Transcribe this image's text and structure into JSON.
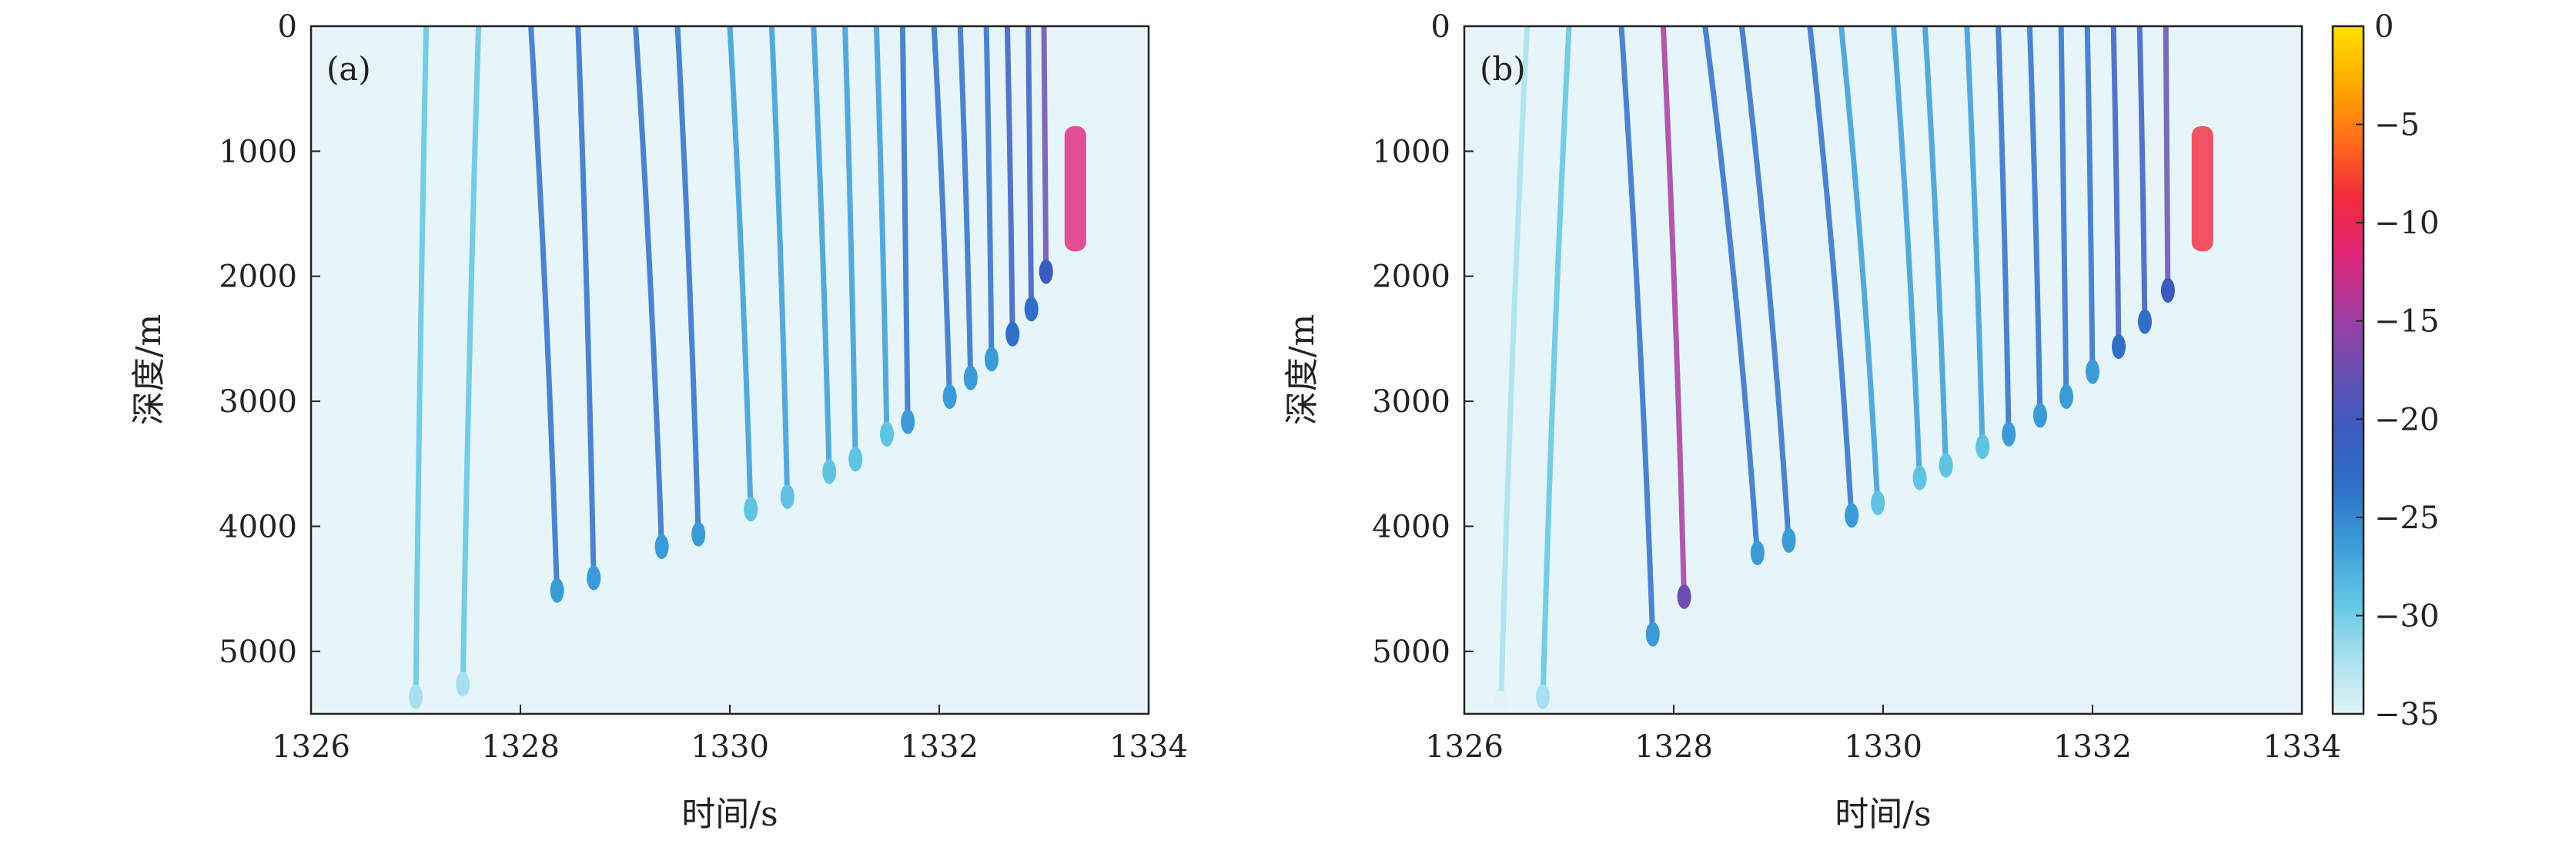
{
  "chart_data": [
    {
      "type": "heatmap",
      "panel_label": "(a)",
      "title": "",
      "xlabel": "时间/s",
      "ylabel": "深度/m",
      "xlim": [
        1326,
        1334
      ],
      "ylim": [
        0,
        5500
      ],
      "y_inverted": true,
      "xticks": [
        1326,
        1328,
        1330,
        1332,
        1334
      ],
      "xtick_labels": [
        "1326",
        "1328",
        "1330",
        "1332",
        "1334"
      ],
      "yticks": [
        0,
        1000,
        2000,
        3000,
        4000,
        5000
      ],
      "ytick_labels": [
        "0",
        "1000",
        "2000",
        "3000",
        "4000",
        "5000"
      ],
      "arrivals": [
        {
          "t_start": 1327.1,
          "t_turn": 1327.0,
          "max_depth": 5400,
          "level": -30
        },
        {
          "t_start": 1327.6,
          "t_turn": 1327.45,
          "max_depth": 5300,
          "level": -28
        },
        {
          "t_start": 1328.1,
          "t_turn": 1328.35,
          "max_depth": 4550,
          "level": -24
        },
        {
          "t_start": 1328.55,
          "t_turn": 1328.7,
          "max_depth": 4450,
          "level": -24
        },
        {
          "t_start": 1329.1,
          "t_turn": 1329.35,
          "max_depth": 4200,
          "level": -24
        },
        {
          "t_start": 1329.5,
          "t_turn": 1329.7,
          "max_depth": 4100,
          "level": -24
        },
        {
          "t_start": 1330.0,
          "t_turn": 1330.2,
          "max_depth": 3900,
          "level": -25
        },
        {
          "t_start": 1330.4,
          "t_turn": 1330.55,
          "max_depth": 3800,
          "level": -25
        },
        {
          "t_start": 1330.8,
          "t_turn": 1330.95,
          "max_depth": 3600,
          "level": -25
        },
        {
          "t_start": 1331.1,
          "t_turn": 1331.2,
          "max_depth": 3500,
          "level": -25
        },
        {
          "t_start": 1331.4,
          "t_turn": 1331.5,
          "max_depth": 3300,
          "level": -25
        },
        {
          "t_start": 1331.65,
          "t_turn": 1331.7,
          "max_depth": 3200,
          "level": -24
        },
        {
          "t_start": 1331.95,
          "t_turn": 1332.1,
          "max_depth": 3000,
          "level": -23
        },
        {
          "t_start": 1332.2,
          "t_turn": 1332.3,
          "max_depth": 2850,
          "level": -22
        },
        {
          "t_start": 1332.45,
          "t_turn": 1332.5,
          "max_depth": 2700,
          "level": -22
        },
        {
          "t_start": 1332.65,
          "t_turn": 1332.7,
          "max_depth": 2500,
          "level": -21
        },
        {
          "t_start": 1332.85,
          "t_turn": 1332.88,
          "max_depth": 2300,
          "level": -20
        },
        {
          "t_start": 1333.0,
          "t_turn": 1333.02,
          "max_depth": 2000,
          "level": -18
        }
      ],
      "convergence": {
        "time": 1333.3,
        "depth_min": 800,
        "depth_max": 1800,
        "level": -12
      }
    },
    {
      "type": "heatmap",
      "panel_label": "(b)",
      "title": "",
      "xlabel": "时间/s",
      "ylabel": "深度/m",
      "xlim": [
        1326,
        1334
      ],
      "ylim": [
        0,
        5500
      ],
      "y_inverted": true,
      "xticks": [
        1326,
        1328,
        1330,
        1332,
        1334
      ],
      "xtick_labels": [
        "1326",
        "1328",
        "1330",
        "1332",
        "1334"
      ],
      "yticks": [
        0,
        1000,
        2000,
        3000,
        4000,
        5000
      ],
      "ytick_labels": [
        "0",
        "1000",
        "2000",
        "3000",
        "4000",
        "5000"
      ],
      "arrivals": [
        {
          "t_start": 1326.6,
          "t_turn": 1326.35,
          "max_depth": 5450,
          "level": -32
        },
        {
          "t_start": 1327.0,
          "t_turn": 1326.75,
          "max_depth": 5400,
          "level": -29
        },
        {
          "t_start": 1327.5,
          "t_turn": 1327.8,
          "max_depth": 4900,
          "level": -23
        },
        {
          "t_start": 1327.9,
          "t_turn": 1328.1,
          "max_depth": 4600,
          "level": -14
        },
        {
          "t_start": 1328.3,
          "t_turn": 1328.8,
          "max_depth": 4250,
          "level": -24
        },
        {
          "t_start": 1328.65,
          "t_turn": 1329.1,
          "max_depth": 4150,
          "level": -24
        },
        {
          "t_start": 1329.3,
          "t_turn": 1329.7,
          "max_depth": 3950,
          "level": -24
        },
        {
          "t_start": 1329.6,
          "t_turn": 1329.95,
          "max_depth": 3850,
          "level": -25
        },
        {
          "t_start": 1330.1,
          "t_turn": 1330.35,
          "max_depth": 3650,
          "level": -25
        },
        {
          "t_start": 1330.4,
          "t_turn": 1330.6,
          "max_depth": 3550,
          "level": -25
        },
        {
          "t_start": 1330.8,
          "t_turn": 1330.95,
          "max_depth": 3400,
          "level": -25
        },
        {
          "t_start": 1331.1,
          "t_turn": 1331.2,
          "max_depth": 3300,
          "level": -24
        },
        {
          "t_start": 1331.4,
          "t_turn": 1331.5,
          "max_depth": 3150,
          "level": -24
        },
        {
          "t_start": 1331.7,
          "t_turn": 1331.75,
          "max_depth": 3000,
          "level": -23
        },
        {
          "t_start": 1331.95,
          "t_turn": 1332.0,
          "max_depth": 2800,
          "level": -22
        },
        {
          "t_start": 1332.2,
          "t_turn": 1332.25,
          "max_depth": 2600,
          "level": -21
        },
        {
          "t_start": 1332.45,
          "t_turn": 1332.5,
          "max_depth": 2400,
          "level": -20
        },
        {
          "t_start": 1332.7,
          "t_turn": 1332.72,
          "max_depth": 2150,
          "level": -18
        }
      ],
      "convergence": {
        "time": 1333.05,
        "depth_min": 800,
        "depth_max": 1800,
        "level": -10
      }
    }
  ],
  "colorbar": {
    "range": [
      -35,
      0
    ],
    "ticks": [
      0,
      -5,
      -10,
      -15,
      -20,
      -25,
      -30,
      -35
    ],
    "tick_labels": [
      "0",
      "−5",
      "−10",
      "−15",
      "−20",
      "−25",
      "−30",
      "−35"
    ],
    "colors": [
      "#ffe200",
      "#ffab00",
      "#ff6d1a",
      "#f22a3c",
      "#e0267a",
      "#a53ca0",
      "#6a4fb0",
      "#3b5cbf",
      "#2f6fc8",
      "#3a9bd7",
      "#5fc4e2",
      "#a7e0ee",
      "#e2f4f8"
    ]
  },
  "background_color": "#e6f5f9"
}
